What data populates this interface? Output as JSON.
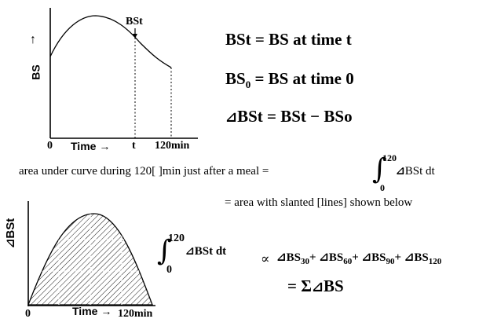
{
  "top_graph": {
    "y_label": "BS",
    "y_arrow": "↑",
    "x_label": "Time →",
    "tick_0": "0",
    "tick_t": "t",
    "tick_120": "120min",
    "point_label": "BSt"
  },
  "definitions": {
    "line1": "BSt = BS at time t",
    "line2_a": "BS",
    "line2_sub": "0",
    "line2_b": " = BS at time 0",
    "line3_tri": "⊿",
    "line3": "BSt = BSt − BSo"
  },
  "area_text": {
    "prefix": "area under curve during 120[ ]min just after a meal = ",
    "int_upper": "120",
    "int_lower": "0",
    "int_tri": "⊿",
    "int_body": "BSt dt",
    "line2": "= area with slanted [lines] shown below"
  },
  "bottom_graph": {
    "y_label": "⊿BSt",
    "x_label": "Time →",
    "tick_0": "0",
    "tick_120": "120min"
  },
  "approx": {
    "int_upper": "120",
    "int_lower": "0",
    "int_tri": "⊿",
    "int_body": "BSt dt",
    "prop": "∝",
    "terms": [
      {
        "tri": "⊿",
        "base": "BS",
        "sub": "30",
        "sep": "+"
      },
      {
        "tri": "⊿",
        "base": "BS",
        "sub": "60",
        "sep": "+"
      },
      {
        "tri": "⊿",
        "base": "BS",
        "sub": "90",
        "sep": "+"
      },
      {
        "tri": "⊿",
        "base": "BS",
        "sub": "120",
        "sep": ""
      }
    ],
    "sum_prefix": "= Σ",
    "sum_tri": "⊿",
    "sum_base": "BS"
  }
}
